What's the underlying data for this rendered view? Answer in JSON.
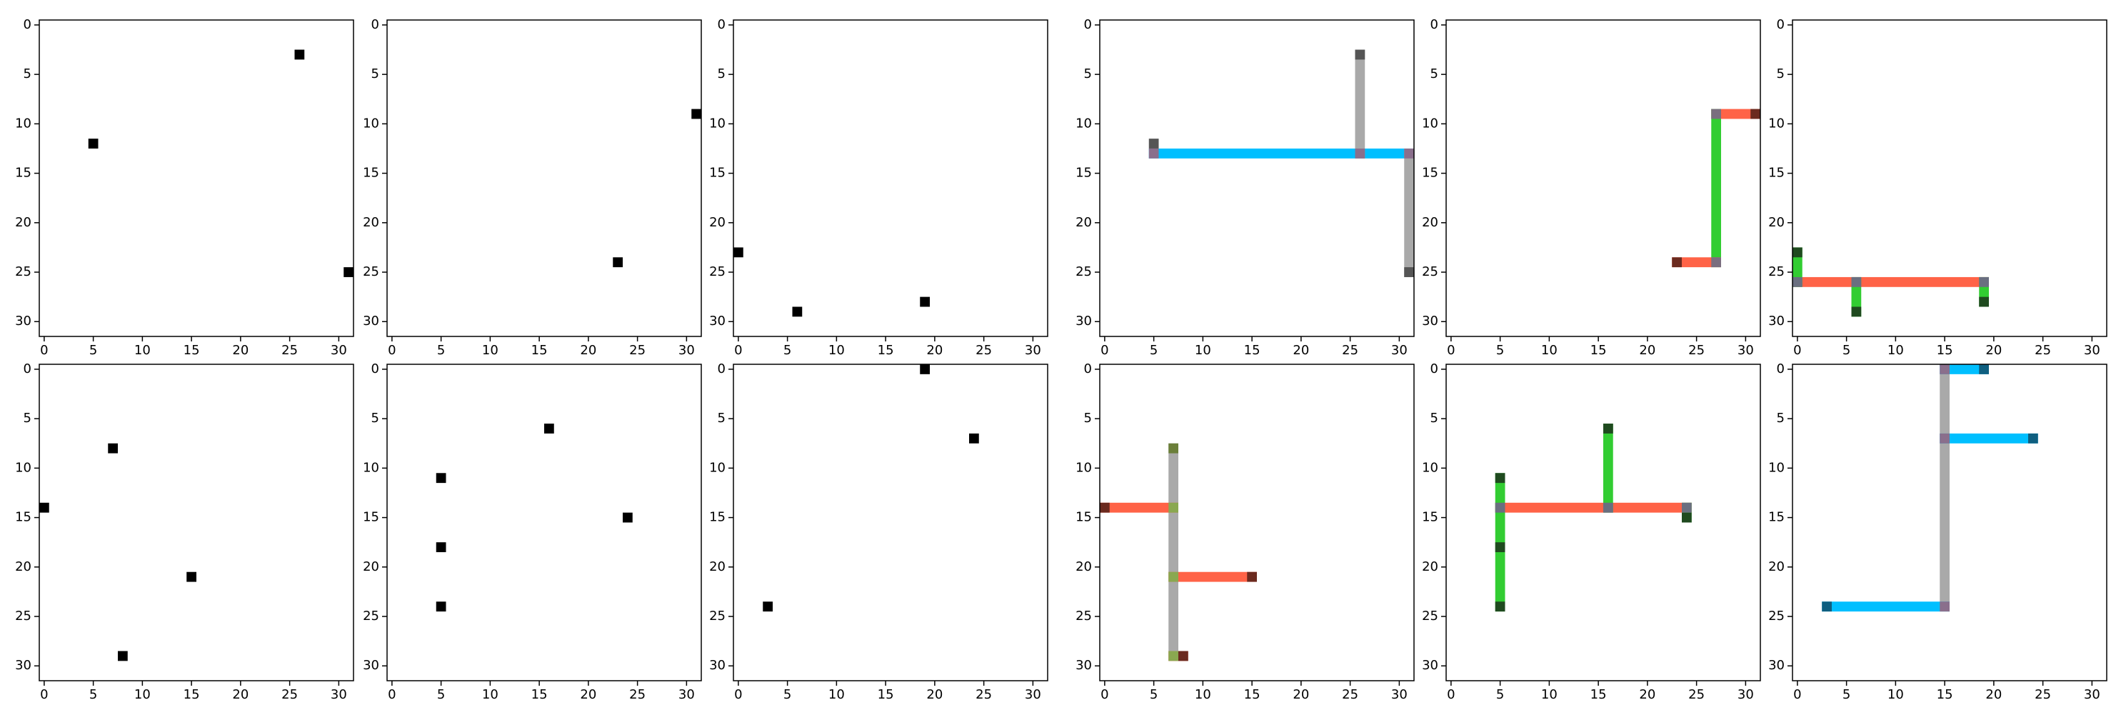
{
  "chart_data": [
    {
      "type": "grid",
      "xlim": [
        -0.5,
        31.5
      ],
      "ylim": [
        31.5,
        -0.5
      ],
      "xticks": [
        0,
        5,
        10,
        15,
        20,
        25,
        30
      ],
      "yticks": [
        0,
        5,
        10,
        15,
        20,
        25,
        30
      ],
      "points": {
        "color": "#000000",
        "x": [
          26,
          5,
          31
        ],
        "y": [
          3,
          12,
          25
        ]
      }
    },
    {
      "type": "grid",
      "xlim": [
        -0.5,
        31.5
      ],
      "ylim": [
        31.5,
        -0.5
      ],
      "xticks": [
        0,
        5,
        10,
        15,
        20,
        25,
        30
      ],
      "yticks": [
        0,
        5,
        10,
        15,
        20,
        25,
        30
      ],
      "points": {
        "color": "#000000",
        "x": [
          31,
          23
        ],
        "y": [
          9,
          24
        ]
      }
    },
    {
      "type": "grid",
      "xlim": [
        -0.5,
        31.5
      ],
      "ylim": [
        31.5,
        -0.5
      ],
      "xticks": [
        0,
        5,
        10,
        15,
        20,
        25,
        30
      ],
      "yticks": [
        0,
        5,
        10,
        15,
        20,
        25,
        30
      ],
      "points": {
        "color": "#000000",
        "x": [
          0,
          6,
          19
        ],
        "y": [
          23,
          29,
          28
        ]
      }
    },
    {
      "type": "grid",
      "xlim": [
        -0.5,
        31.5
      ],
      "ylim": [
        31.5,
        -0.5
      ],
      "xticks": [
        0,
        5,
        10,
        15,
        20,
        25,
        30
      ],
      "yticks": [
        0,
        5,
        10,
        15,
        20,
        25,
        30
      ],
      "segments": [
        {
          "color": "#00bfff",
          "x": [
            5,
            31
          ],
          "y": [
            13,
            13
          ]
        },
        {
          "color": "#a9a9a9",
          "x": [
            26,
            26
          ],
          "y": [
            3,
            13
          ]
        },
        {
          "color": "#a9a9a9",
          "x": [
            31,
            31
          ],
          "y": [
            13,
            25
          ]
        }
      ],
      "markers": [
        {
          "color": "#555555",
          "x": [
            26,
            5,
            31
          ],
          "y": [
            3,
            12,
            25
          ]
        },
        {
          "color": "#8a6f8c",
          "x": [
            5,
            26,
            31
          ],
          "y": [
            13,
            13,
            13
          ]
        }
      ]
    },
    {
      "type": "grid",
      "xlim": [
        -0.5,
        31.5
      ],
      "ylim": [
        31.5,
        -0.5
      ],
      "xticks": [
        0,
        5,
        10,
        15,
        20,
        25,
        30
      ],
      "yticks": [
        0,
        5,
        10,
        15,
        20,
        25,
        30
      ],
      "segments": [
        {
          "color": "#ff6347",
          "x": [
            27,
            31
          ],
          "y": [
            9,
            9
          ]
        },
        {
          "color": "#32cd32",
          "x": [
            27,
            27
          ],
          "y": [
            9,
            24
          ]
        },
        {
          "color": "#ff6347",
          "x": [
            23,
            27
          ],
          "y": [
            24,
            24
          ]
        }
      ],
      "markers": [
        {
          "color": "#6b2a1f",
          "x": [
            31,
            23
          ],
          "y": [
            9,
            24
          ]
        },
        {
          "color": "#7a6e7f",
          "x": [
            27,
            27
          ],
          "y": [
            9,
            24
          ]
        }
      ]
    },
    {
      "type": "grid",
      "xlim": [
        -0.5,
        31.5
      ],
      "ylim": [
        31.5,
        -0.5
      ],
      "xticks": [
        0,
        5,
        10,
        15,
        20,
        25,
        30
      ],
      "yticks": [
        0,
        5,
        10,
        15,
        20,
        25,
        30
      ],
      "segments": [
        {
          "color": "#ff6347",
          "x": [
            0,
            19
          ],
          "y": [
            26,
            26
          ]
        },
        {
          "color": "#32cd32",
          "x": [
            0,
            0
          ],
          "y": [
            23,
            26
          ]
        },
        {
          "color": "#32cd32",
          "x": [
            6,
            6
          ],
          "y": [
            26,
            29
          ]
        },
        {
          "color": "#32cd32",
          "x": [
            19,
            19
          ],
          "y": [
            26,
            28
          ]
        }
      ],
      "markers": [
        {
          "color": "#1f4a1f",
          "x": [
            0,
            6,
            19
          ],
          "y": [
            23,
            29,
            28
          ]
        },
        {
          "color": "#6a6f80",
          "x": [
            0,
            6,
            19
          ],
          "y": [
            26,
            26,
            26
          ]
        }
      ]
    },
    {
      "type": "grid",
      "xlim": [
        -0.5,
        31.5
      ],
      "ylim": [
        31.5,
        -0.5
      ],
      "xticks": [
        0,
        5,
        10,
        15,
        20,
        25,
        30
      ],
      "yticks": [
        0,
        5,
        10,
        15,
        20,
        25,
        30
      ],
      "points": {
        "color": "#000000",
        "x": [
          7,
          0,
          15,
          8
        ],
        "y": [
          8,
          14,
          21,
          29
        ]
      }
    },
    {
      "type": "grid",
      "xlim": [
        -0.5,
        31.5
      ],
      "ylim": [
        31.5,
        -0.5
      ],
      "xticks": [
        0,
        5,
        10,
        15,
        20,
        25,
        30
      ],
      "yticks": [
        0,
        5,
        10,
        15,
        20,
        25,
        30
      ],
      "points": {
        "color": "#000000",
        "x": [
          16,
          5,
          24,
          5,
          5
        ],
        "y": [
          6,
          11,
          15,
          18,
          24
        ]
      }
    },
    {
      "type": "grid",
      "xlim": [
        -0.5,
        31.5
      ],
      "ylim": [
        31.5,
        -0.5
      ],
      "xticks": [
        0,
        5,
        10,
        15,
        20,
        25,
        30
      ],
      "yticks": [
        0,
        5,
        10,
        15,
        20,
        25,
        30
      ],
      "points": {
        "color": "#000000",
        "x": [
          19,
          24,
          3
        ],
        "y": [
          0,
          7,
          24
        ]
      }
    },
    {
      "type": "grid",
      "xlim": [
        -0.5,
        31.5
      ],
      "ylim": [
        31.5,
        -0.5
      ],
      "xticks": [
        0,
        5,
        10,
        15,
        20,
        25,
        30
      ],
      "yticks": [
        0,
        5,
        10,
        15,
        20,
        25,
        30
      ],
      "segments": [
        {
          "color": "#a9a9a9",
          "x": [
            7,
            7
          ],
          "y": [
            8,
            29
          ]
        },
        {
          "color": "#ff6347",
          "x": [
            0,
            7
          ],
          "y": [
            14,
            14
          ]
        },
        {
          "color": "#ff6347",
          "x": [
            7,
            15
          ],
          "y": [
            21,
            21
          ]
        },
        {
          "color": "#ff6347",
          "x": [
            7,
            8
          ],
          "y": [
            29,
            29
          ]
        }
      ],
      "markers": [
        {
          "color": "#6b7f3a",
          "x": [
            7
          ],
          "y": [
            8
          ]
        },
        {
          "color": "#6b2a1f",
          "x": [
            0,
            15,
            8
          ],
          "y": [
            14,
            21,
            29
          ]
        },
        {
          "color": "#8aa850",
          "x": [
            7,
            7,
            7
          ],
          "y": [
            14,
            21,
            29
          ]
        }
      ]
    },
    {
      "type": "grid",
      "xlim": [
        -0.5,
        31.5
      ],
      "ylim": [
        31.5,
        -0.5
      ],
      "xticks": [
        0,
        5,
        10,
        15,
        20,
        25,
        30
      ],
      "yticks": [
        0,
        5,
        10,
        15,
        20,
        25,
        30
      ],
      "segments": [
        {
          "color": "#ff6347",
          "x": [
            5,
            24
          ],
          "y": [
            14,
            14
          ]
        },
        {
          "color": "#32cd32",
          "x": [
            16,
            16
          ],
          "y": [
            6,
            14
          ]
        },
        {
          "color": "#32cd32",
          "x": [
            5,
            5
          ],
          "y": [
            11,
            24
          ]
        },
        {
          "color": "#32cd32",
          "x": [
            24,
            24
          ],
          "y": [
            14,
            15
          ]
        }
      ],
      "markers": [
        {
          "color": "#1f4a1f",
          "x": [
            16,
            5,
            24,
            5,
            5
          ],
          "y": [
            6,
            11,
            15,
            18,
            24
          ]
        },
        {
          "color": "#6a6f80",
          "x": [
            5,
            16,
            24
          ],
          "y": [
            14,
            14,
            14
          ]
        }
      ]
    },
    {
      "type": "grid",
      "xlim": [
        -0.5,
        31.5
      ],
      "ylim": [
        31.5,
        -0.5
      ],
      "xticks": [
        0,
        5,
        10,
        15,
        20,
        25,
        30
      ],
      "yticks": [
        0,
        5,
        10,
        15,
        20,
        25,
        30
      ],
      "segments": [
        {
          "color": "#a9a9a9",
          "x": [
            15,
            15
          ],
          "y": [
            0,
            24
          ]
        },
        {
          "color": "#00bfff",
          "x": [
            15,
            19
          ],
          "y": [
            0,
            0
          ]
        },
        {
          "color": "#00bfff",
          "x": [
            15,
            24
          ],
          "y": [
            7,
            7
          ]
        },
        {
          "color": "#00bfff",
          "x": [
            3,
            15
          ],
          "y": [
            24,
            24
          ]
        }
      ],
      "markers": [
        {
          "color": "#0f5f80",
          "x": [
            19,
            24,
            3
          ],
          "y": [
            0,
            7,
            24
          ]
        },
        {
          "color": "#8a6f8c",
          "x": [
            15,
            15,
            15
          ],
          "y": [
            0,
            7,
            24
          ]
        }
      ]
    }
  ]
}
